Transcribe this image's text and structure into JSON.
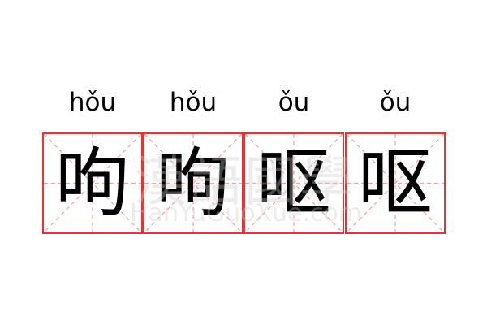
{
  "pinyin": [
    "hǒu",
    "hǒu",
    "ǒu",
    "ǒu"
  ],
  "characters": [
    "呴",
    "呴",
    "呕",
    "呕"
  ],
  "watermark": {
    "logo": "漢語國學",
    "site": "HanYuGuoXue.com"
  },
  "colors": {
    "grid_border": "#f03030",
    "guide_lines": "#f4a0a0",
    "text": "#000000"
  }
}
